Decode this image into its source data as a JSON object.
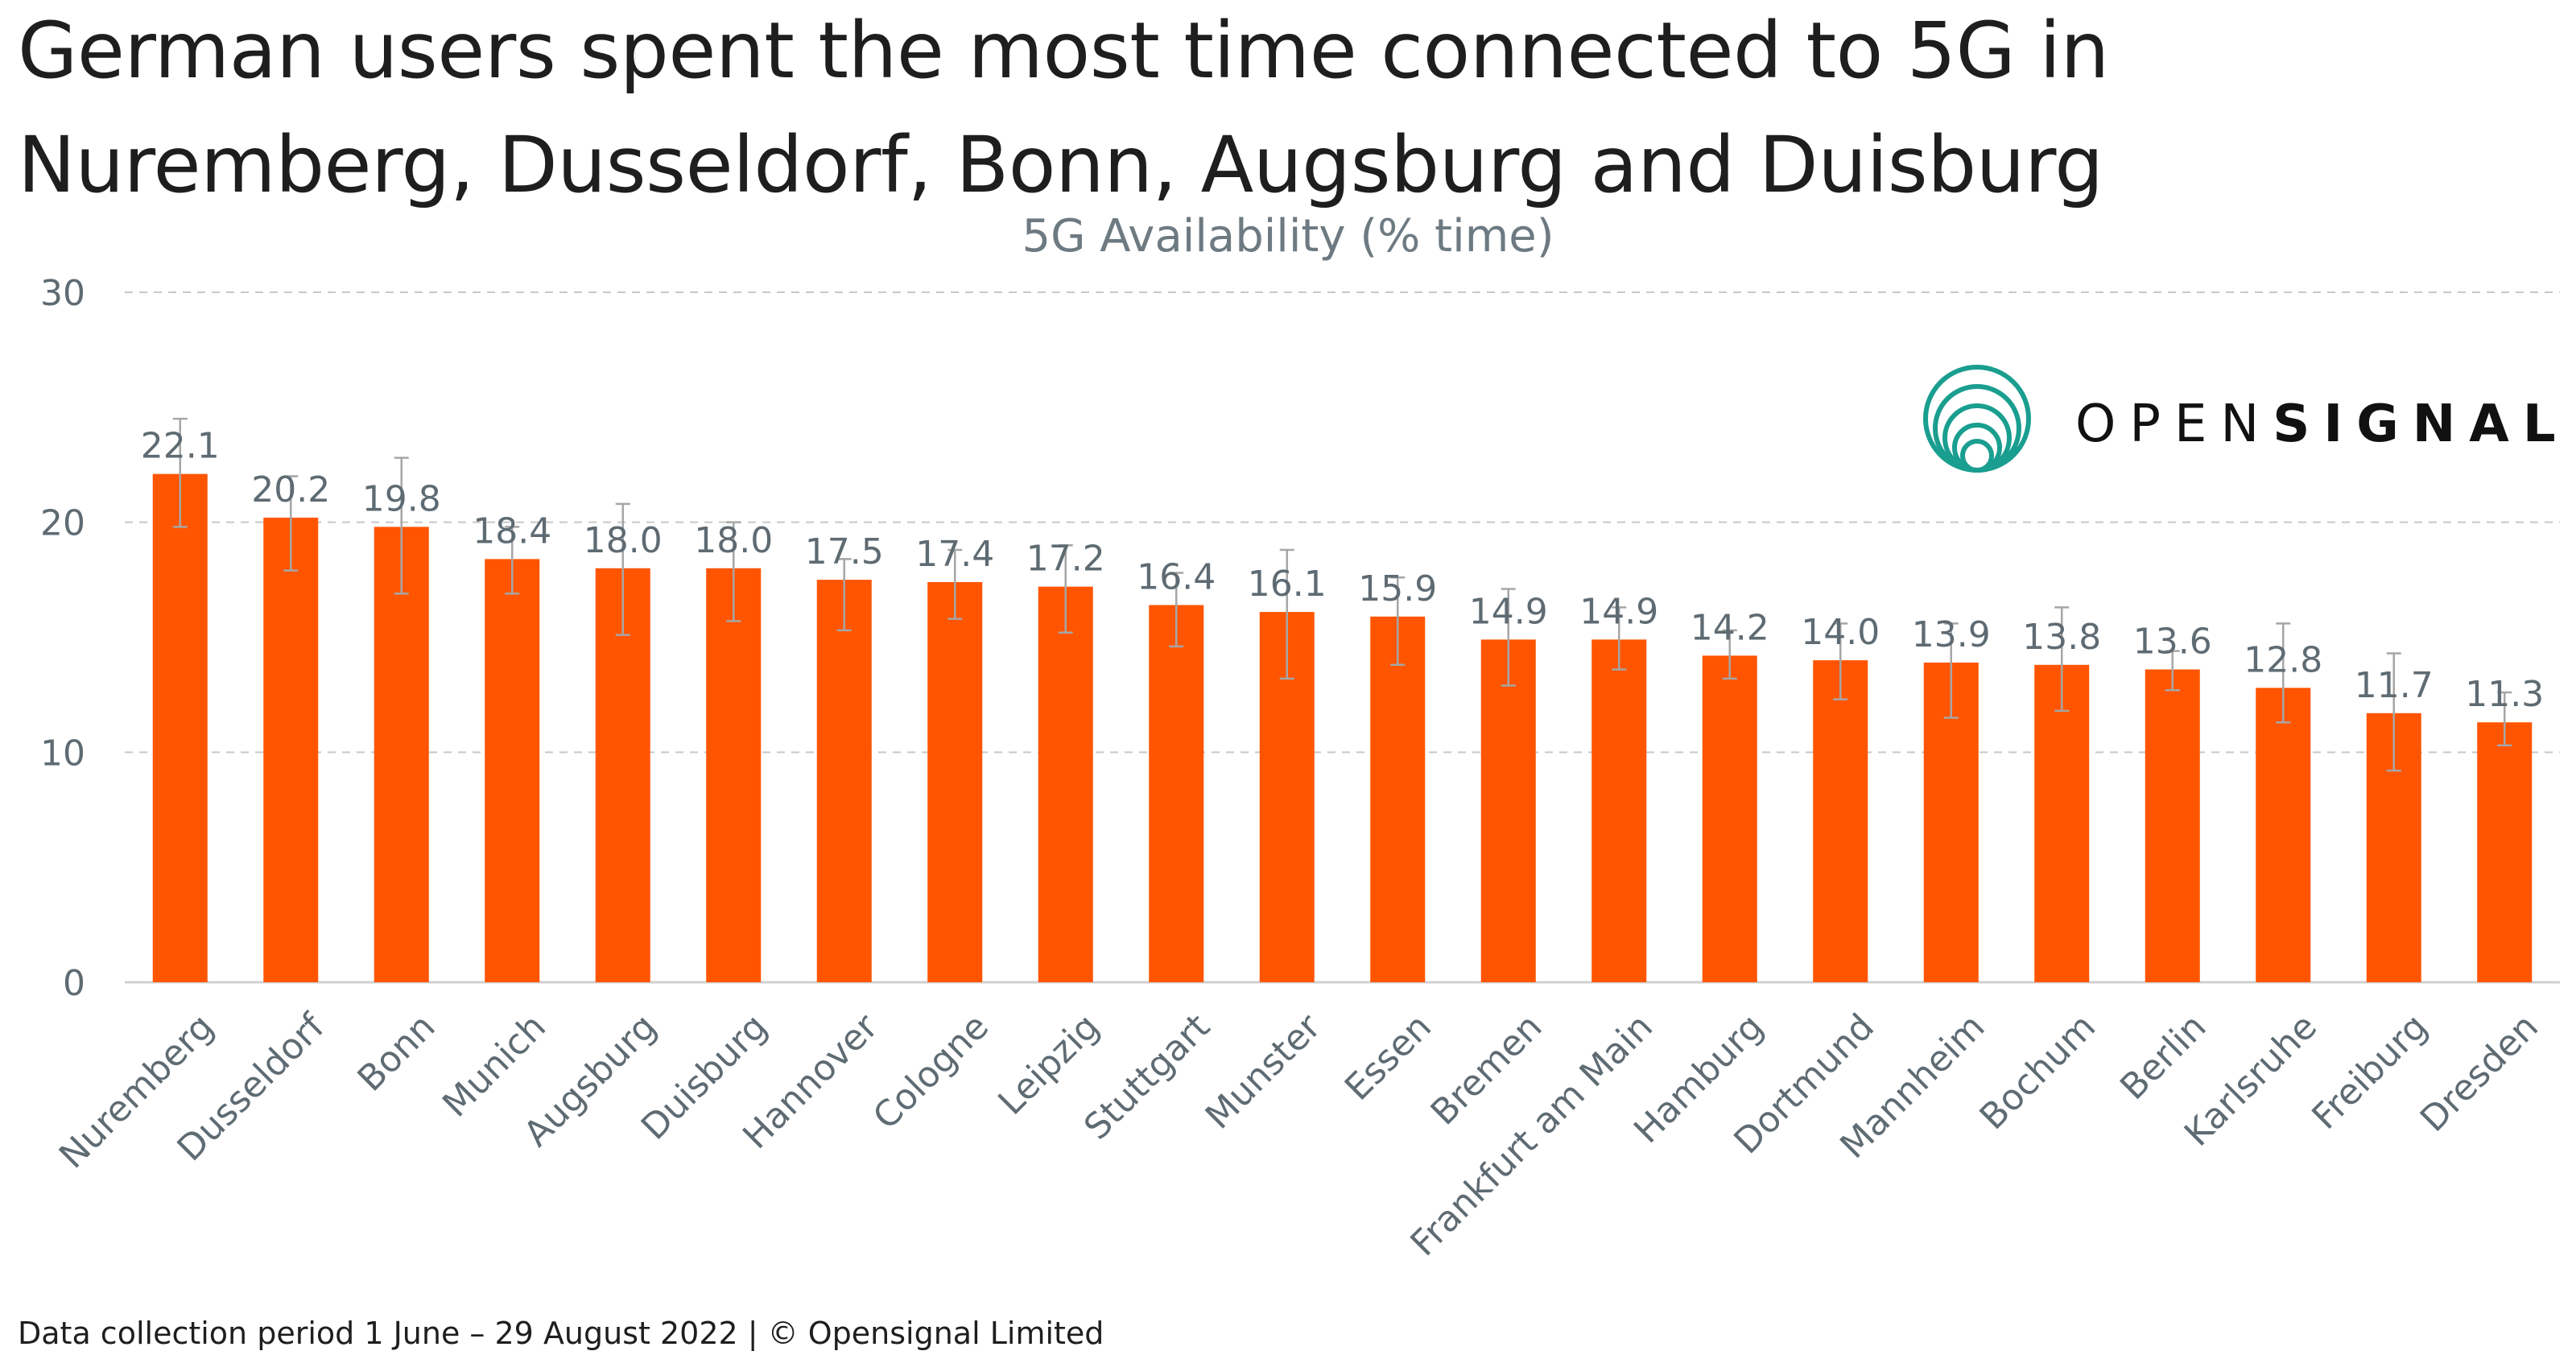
{
  "headline": {
    "line1": "German users spent the most time connected to 5G in",
    "line2": "Nuremberg, Dusseldorf, Bonn, Augsburg and Duisburg"
  },
  "footer": {
    "text": "Data collection period 1 June – 29 August 2022  |  © Opensignal Limited"
  },
  "logo": {
    "text_light": "OPEN",
    "text_bold": "SIGNAL",
    "color": "#1a9e8f"
  },
  "colors": {
    "bar": "#ff5500",
    "error_bar": "#a6a6a6",
    "grid": "#c8c8c8",
    "axis_text": "#5f6b73",
    "label_text": "#5f6b73"
  },
  "chart_data": {
    "type": "bar",
    "title": "5G Availability (% time)",
    "xlabel": "",
    "ylabel": "",
    "ylim": [
      0,
      30
    ],
    "yticks": [
      0,
      10,
      20,
      30
    ],
    "grid": true,
    "categories": [
      "Nuremberg",
      "Dusseldorf",
      "Bonn",
      "Munich",
      "Augsburg",
      "Duisburg",
      "Hannover",
      "Cologne",
      "Leipzig",
      "Stuttgart",
      "Munster",
      "Essen",
      "Bremen",
      "Frankfurt am Main",
      "Hamburg",
      "Dortmund",
      "Mannheim",
      "Bochum",
      "Berlin",
      "Karlsruhe",
      "Freiburg",
      "Dresden"
    ],
    "values": [
      22.1,
      20.2,
      19.8,
      18.4,
      18.0,
      18.0,
      17.5,
      17.4,
      17.2,
      16.4,
      16.1,
      15.9,
      14.9,
      14.9,
      14.2,
      14.0,
      13.9,
      13.8,
      13.6,
      12.8,
      11.7,
      11.3
    ],
    "value_labels": [
      "22.1",
      "20.2",
      "19.8",
      "18.4",
      "18.0",
      "18.0",
      "17.5",
      "17.4",
      "17.2",
      "16.4",
      "16.1",
      "15.9",
      "14.9",
      "14.9",
      "14.2",
      "14.0",
      "13.9",
      "13.8",
      "13.6",
      "12.8",
      "11.7",
      "11.3"
    ],
    "error_low": [
      19.8,
      17.9,
      16.9,
      16.9,
      15.1,
      15.7,
      15.3,
      15.8,
      15.2,
      14.6,
      13.2,
      13.8,
      12.9,
      13.6,
      13.2,
      12.3,
      11.5,
      11.8,
      12.7,
      11.3,
      9.2,
      10.3
    ],
    "error_high": [
      24.5,
      22.0,
      22.8,
      19.8,
      20.8,
      20.0,
      18.4,
      18.8,
      19.0,
      17.8,
      18.8,
      17.6,
      17.1,
      16.3,
      15.3,
      15.6,
      15.6,
      16.3,
      14.4,
      15.6,
      14.3,
      12.6
    ]
  }
}
